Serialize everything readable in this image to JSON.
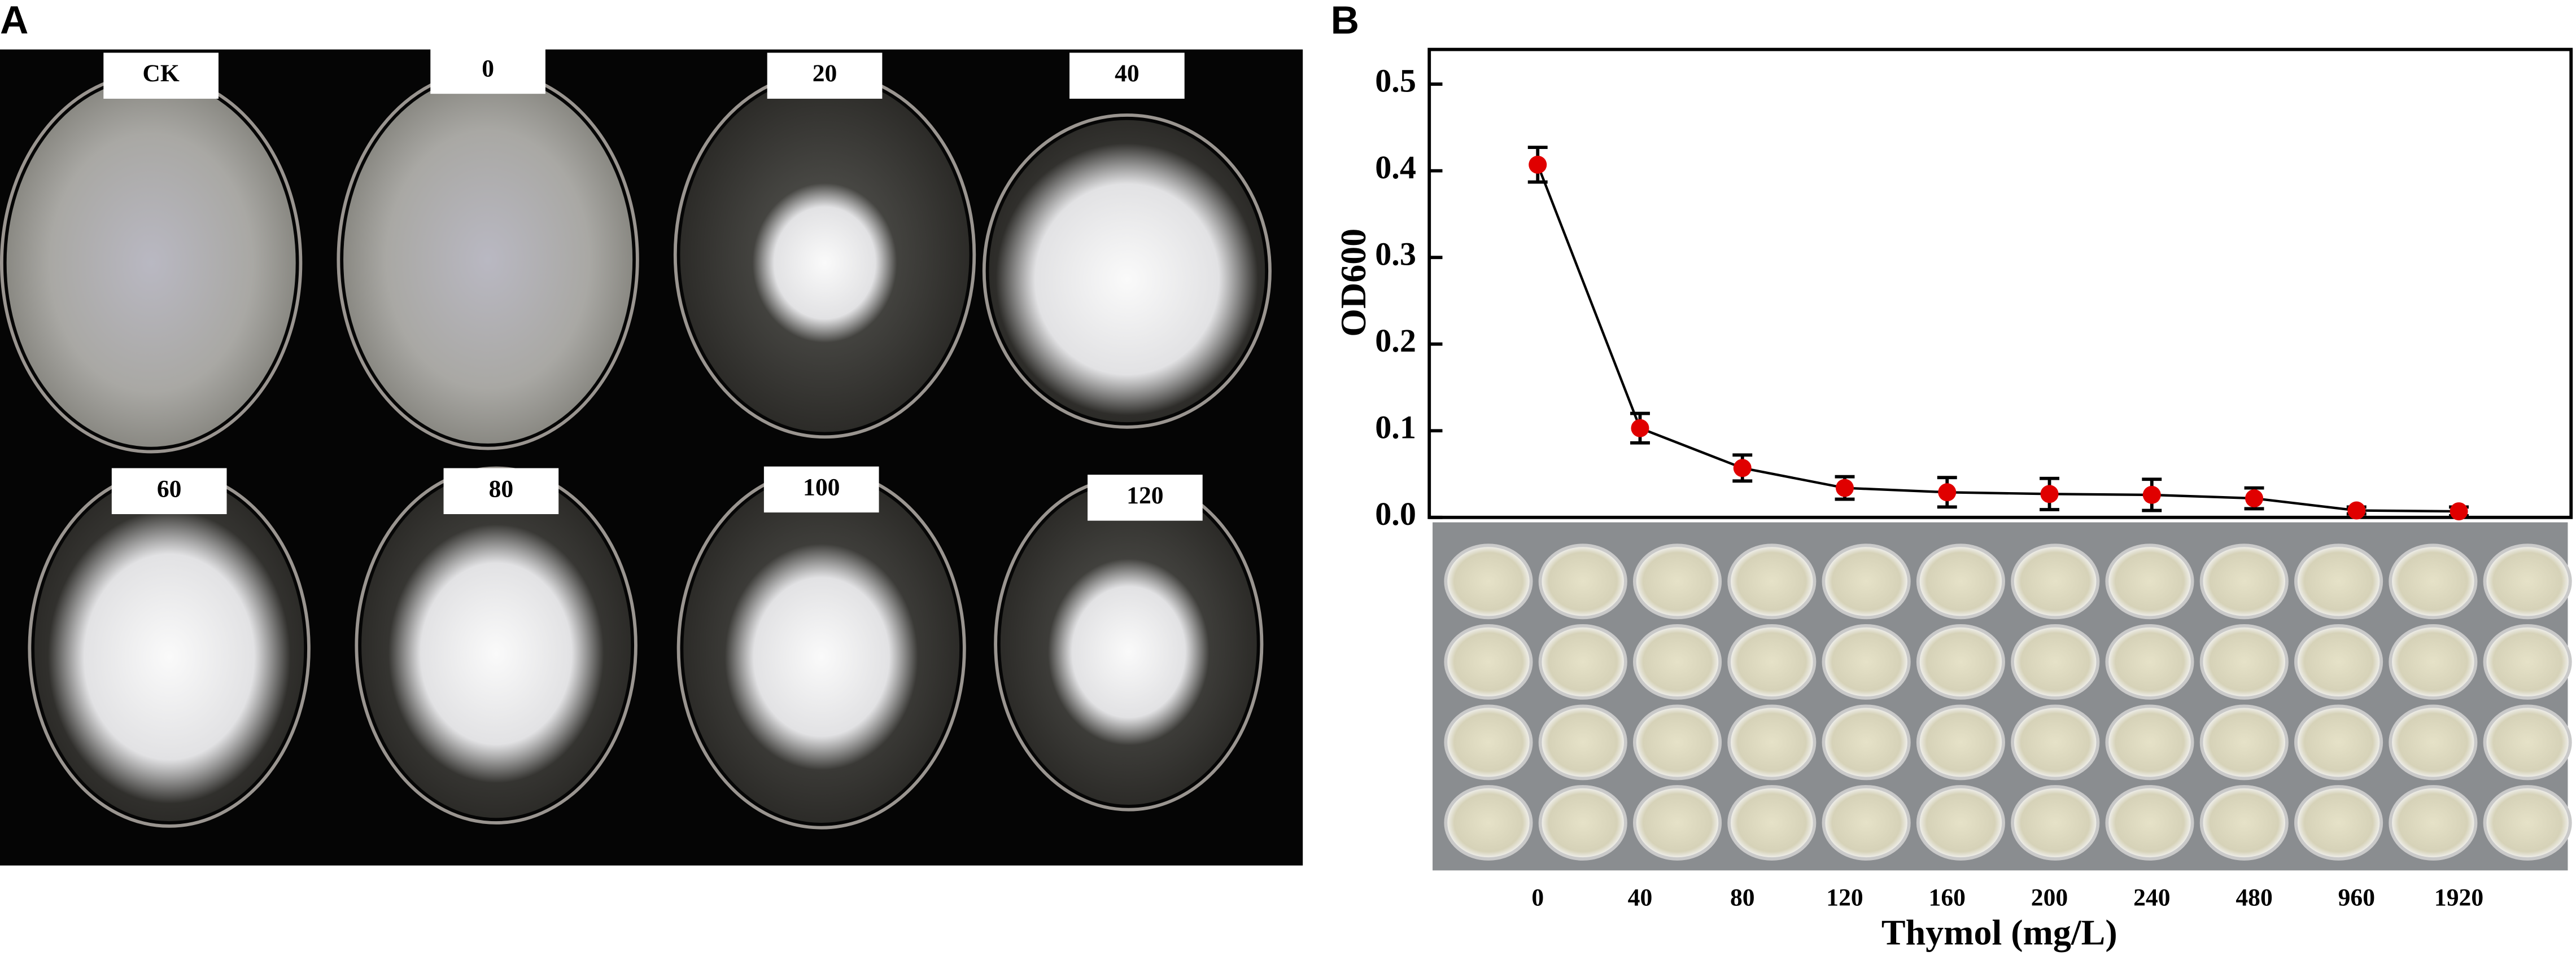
{
  "panel_a": {
    "label": "A",
    "plates": [
      "CK",
      "0",
      "20",
      "40",
      "60",
      "80",
      "100",
      "120"
    ]
  },
  "chart_data": {
    "type": "line",
    "panel_label": "B",
    "x_label": "Thymol (mg/L)",
    "y_label": "OD600",
    "categories": [
      "0",
      "40",
      "80",
      "120",
      "160",
      "200",
      "240",
      "480",
      "960",
      "1920"
    ],
    "values": [
      0.407,
      0.103,
      0.057,
      0.034,
      0.029,
      0.027,
      0.026,
      0.022,
      0.008,
      0.007
    ],
    "errors": [
      0.02,
      0.017,
      0.015,
      0.013,
      0.017,
      0.018,
      0.018,
      0.012,
      0.004,
      0.005
    ],
    "color": "#e00000",
    "ylim": [
      0,
      0.54
    ],
    "yticks": [
      {
        "value": 0,
        "label": "0.0"
      },
      0.1,
      0.2,
      0.3,
      0.4,
      0.5
    ]
  }
}
